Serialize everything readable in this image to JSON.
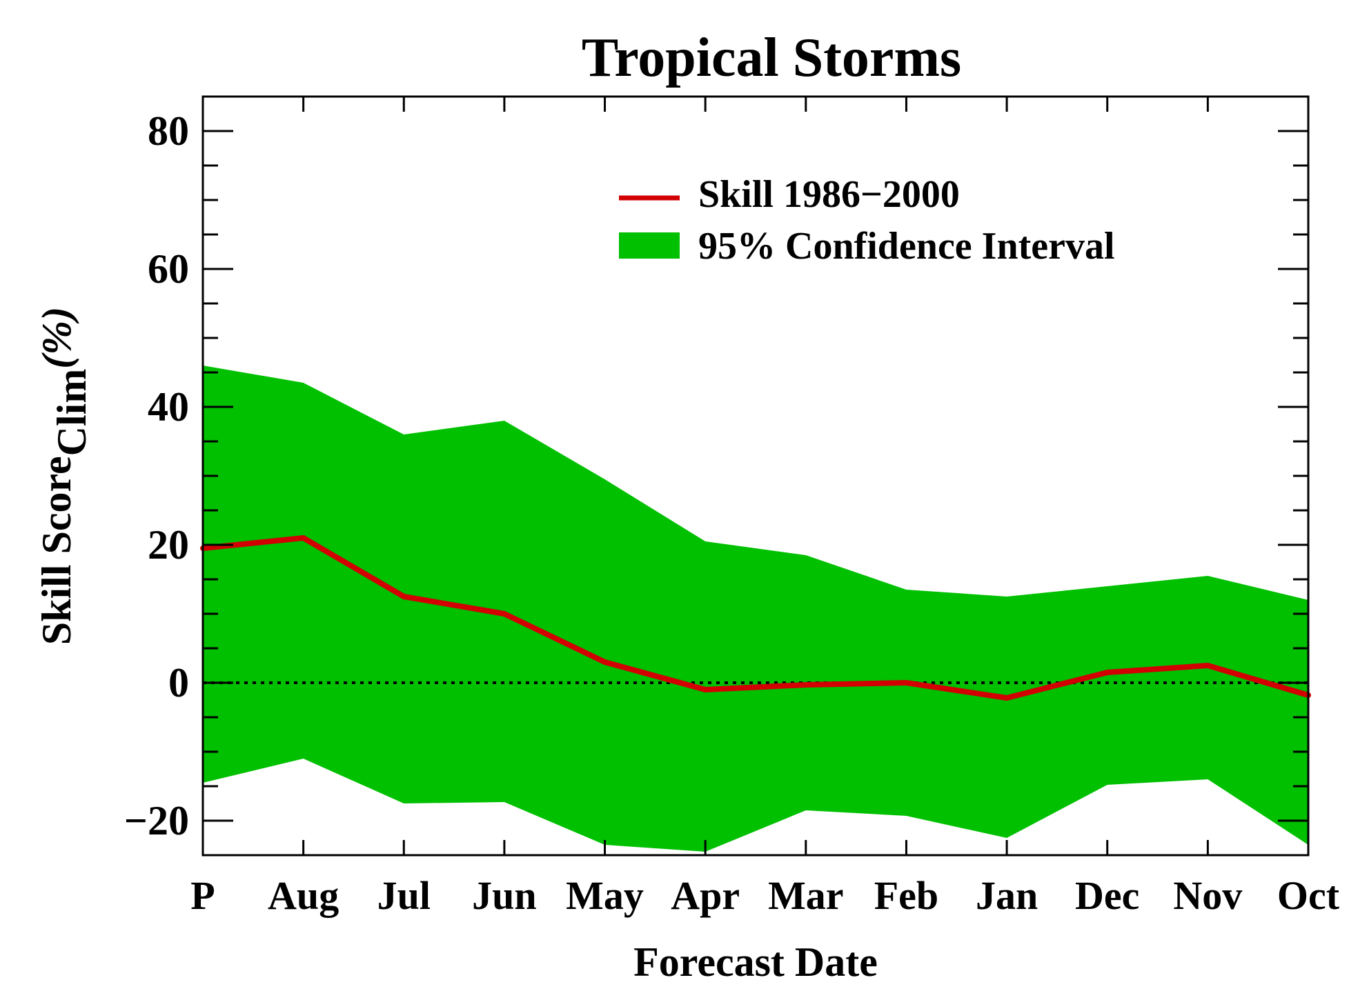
{
  "chart_data": {
    "type": "area",
    "title": "Tropical Storms",
    "xlabel": "Forecast Date",
    "ylabel_main": "Skill Score",
    "ylabel_sub": "Clim",
    "ylabel_unit": "(%)",
    "categories": [
      "P",
      "Aug",
      "Jul",
      "Jun",
      "May",
      "Apr",
      "Mar",
      "Feb",
      "Jan",
      "Dec",
      "Nov",
      "Oct"
    ],
    "ylim": [
      -25,
      85
    ],
    "yticks": [
      -20,
      0,
      20,
      40,
      60,
      80
    ],
    "yticks_minor_step": 5,
    "series": [
      {
        "name": "Skill 1986−2000",
        "kind": "line",
        "color": "#d20000",
        "values": [
          19.5,
          21.0,
          12.5,
          10.0,
          3.0,
          -1.0,
          -0.3,
          0.0,
          -2.2,
          1.5,
          2.5,
          -1.8
        ]
      },
      {
        "name": "95% Confidence Interval",
        "kind": "band",
        "color": "#00c000",
        "upper": [
          46.0,
          43.5,
          36.0,
          38.0,
          29.5,
          20.5,
          18.5,
          13.5,
          12.5,
          14.0,
          15.5,
          12.0
        ],
        "lower": [
          -14.5,
          -11.0,
          -17.5,
          -17.3,
          -23.5,
          -24.5,
          -18.5,
          -19.3,
          -22.5,
          -14.8,
          -14.0,
          -23.5
        ]
      }
    ],
    "zero_line": {
      "value": 0,
      "style": "dotted"
    },
    "legend_position": "top-right",
    "grid": false
  }
}
